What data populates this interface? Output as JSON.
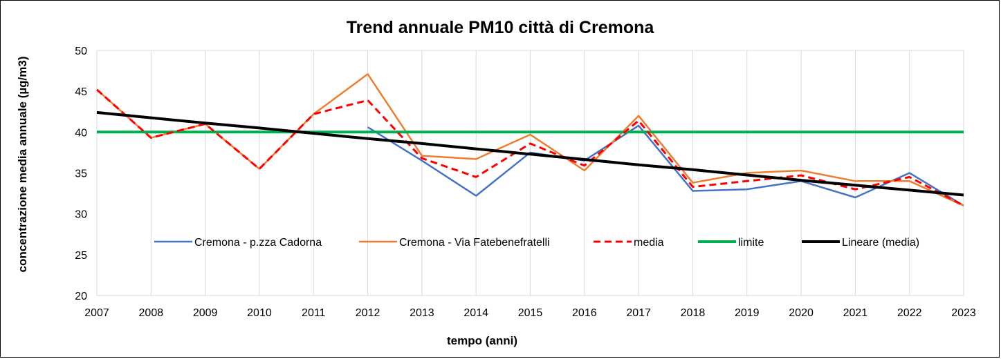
{
  "chart_data": {
    "type": "line",
    "title": "Trend annuale PM10 città di Cremona",
    "xlabel": "tempo (anni)",
    "ylabel": "concentrazione media annuale (µg/m3)",
    "ylim": [
      20,
      50
    ],
    "yticks": [
      20,
      25,
      30,
      35,
      40,
      45,
      50
    ],
    "grid": "vertical",
    "legend_position": "inside-bottom",
    "categories": [
      "2007",
      "2008",
      "2009",
      "2010",
      "2011",
      "2012",
      "2013",
      "2014",
      "2015",
      "2016",
      "2017",
      "2018",
      "2019",
      "2020",
      "2021",
      "2022",
      "2023"
    ],
    "series": [
      {
        "name": "Cremona - p.zza Cadorna",
        "color": "#4472C4",
        "style": "solid",
        "values": [
          null,
          null,
          null,
          null,
          null,
          40.6,
          36.5,
          32.2,
          37.5,
          36.5,
          40.8,
          32.8,
          33.0,
          34.0,
          32.0,
          35.0,
          31.0
        ]
      },
      {
        "name": "Cremona - Via Fatebenefratelli",
        "color": "#ED7D31",
        "style": "solid",
        "values": [
          45.2,
          39.3,
          41.0,
          35.5,
          42.2,
          47.1,
          37.1,
          36.7,
          39.7,
          35.3,
          42.0,
          33.8,
          35.0,
          35.3,
          34.0,
          34.0,
          31.0
        ]
      },
      {
        "name": "media",
        "color": "#FF0000",
        "style": "dashed",
        "values": [
          45.2,
          39.3,
          41.0,
          35.5,
          42.2,
          43.9,
          36.8,
          34.5,
          38.6,
          35.9,
          41.4,
          33.3,
          34.0,
          34.7,
          33.0,
          34.5,
          31.0
        ]
      },
      {
        "name": "limite",
        "color": "#00B050",
        "style": "solid",
        "values": [
          40,
          40,
          40,
          40,
          40,
          40,
          40,
          40,
          40,
          40,
          40,
          40,
          40,
          40,
          40,
          40,
          40
        ]
      },
      {
        "name": "Lineare (media)",
        "color": "#000000",
        "style": "solid",
        "trendline": true,
        "values": [
          42.4,
          41.75,
          41.1,
          40.5,
          39.85,
          39.2,
          38.6,
          37.95,
          37.3,
          36.65,
          36.0,
          35.4,
          34.75,
          34.1,
          33.5,
          32.9,
          32.3
        ]
      }
    ]
  }
}
